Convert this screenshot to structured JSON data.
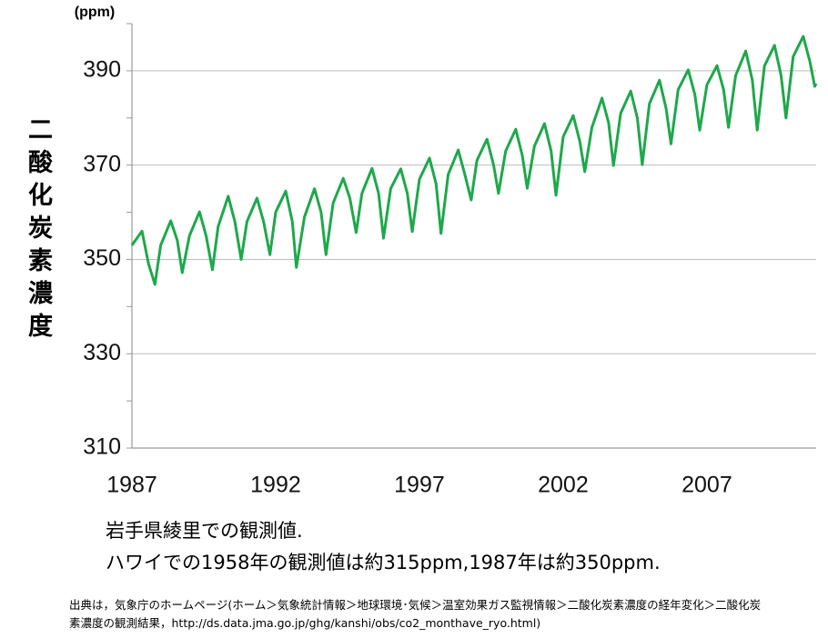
{
  "chart_data": {
    "type": "line",
    "unit_label": "(ppm)",
    "y_label": "二酸化炭素濃度",
    "annotations": [
      "岩手県綾里での観測値.",
      "ハワイでの1958年の観測値は約315ppm,1987年は約350ppm."
    ],
    "source": "出典は，気象庁のホームページ(ホーム＞気象統計情報＞地球環境･気候＞温室効果ガス監視情報＞二酸化炭素濃度の経年変化＞二酸化炭素濃度の観測結果，http://ds.data.jma.go.jp/ghg/kanshi/obs/co2_monthave_ryo.html)",
    "xlim": [
      1987,
      2010.8
    ],
    "xticks": [
      1987,
      1992,
      1997,
      2002,
      2007
    ],
    "ylim": [
      310,
      400
    ],
    "yticks": [
      310,
      330,
      350,
      370,
      390
    ],
    "yminor_ticks": [
      320,
      340,
      360,
      380,
      400
    ],
    "grid": true,
    "series": [
      {
        "color": "#1ea84b",
        "x": [
          1987.0,
          1987.35,
          1987.58,
          1987.8,
          1988.0,
          1988.35,
          1988.58,
          1988.75,
          1989.0,
          1989.35,
          1989.58,
          1989.8,
          1990.0,
          1990.35,
          1990.58,
          1990.8,
          1991.0,
          1991.35,
          1991.58,
          1991.8,
          1992.0,
          1992.35,
          1992.58,
          1992.72,
          1993.0,
          1993.35,
          1993.58,
          1993.75,
          1994.0,
          1994.35,
          1994.58,
          1994.8,
          1995.0,
          1995.35,
          1995.58,
          1995.75,
          1996.0,
          1996.35,
          1996.58,
          1996.75,
          1997.0,
          1997.35,
          1997.58,
          1997.75,
          1998.0,
          1998.35,
          1998.58,
          1998.8,
          1999.0,
          1999.35,
          1999.58,
          1999.75,
          2000.0,
          2000.35,
          2000.58,
          2000.75,
          2001.0,
          2001.35,
          2001.58,
          2001.75,
          2002.0,
          2002.35,
          2002.58,
          2002.75,
          2003.0,
          2003.35,
          2003.58,
          2003.75,
          2004.0,
          2004.35,
          2004.58,
          2004.75,
          2005.0,
          2005.35,
          2005.58,
          2005.75,
          2006.0,
          2006.35,
          2006.58,
          2006.75,
          2007.0,
          2007.35,
          2007.58,
          2007.75,
          2008.0,
          2008.35,
          2008.58,
          2008.75,
          2009.0,
          2009.35,
          2009.58,
          2009.75,
          2010.0,
          2010.35,
          2010.58,
          2010.75,
          2010.8
        ],
        "values": [
          353,
          356.0,
          349,
          344.7,
          353,
          358.2,
          354,
          347.2,
          355,
          360.1,
          355,
          347.8,
          357,
          363.4,
          358,
          350,
          358,
          363,
          358,
          351,
          360,
          364.5,
          358,
          348.3,
          359,
          365,
          360,
          351,
          362,
          367.2,
          363,
          355.7,
          364,
          369.3,
          364,
          354.5,
          365,
          369.2,
          364,
          355.9,
          367,
          371.5,
          366,
          355.5,
          368,
          373.2,
          368,
          362.6,
          371,
          375.5,
          370,
          364,
          373,
          377.6,
          372,
          365.1,
          374,
          378.8,
          373,
          363.6,
          376,
          380.5,
          375,
          368.6,
          378,
          384.2,
          379,
          369.9,
          381,
          385.7,
          380,
          370.1,
          383,
          388,
          382,
          374.5,
          386,
          390.2,
          385,
          377.4,
          387,
          391.1,
          386,
          378,
          389,
          394.2,
          388,
          377.4,
          391,
          395.4,
          389,
          380,
          393,
          397.3,
          392,
          386.7,
          387.3
        ]
      }
    ]
  }
}
